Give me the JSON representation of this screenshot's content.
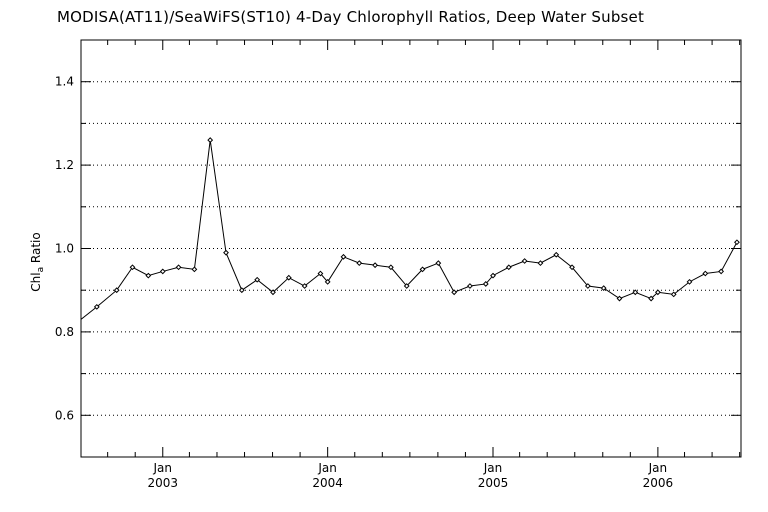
{
  "chart_data": {
    "type": "line",
    "title": "MODISA(AT11)/SeaWiFS(ST10) 4-Day Chlorophyll Ratios, Deep Water Subset",
    "xlabel": "",
    "ylabel_main": "Chl",
    "ylabel_sub": "a",
    "ylabel_rest": " Ratio",
    "ylim": [
      0.5,
      1.5
    ],
    "xlim": [
      "2002-07-04",
      "2006-07-04"
    ],
    "yticks": [
      "0.6",
      "0.8",
      "1.0",
      "1.2",
      "1.4"
    ],
    "ytick_values": [
      0.6,
      0.8,
      1.0,
      1.2,
      1.4
    ],
    "xticks": [
      {
        "date": "2003-01-01",
        "month": "Jan",
        "year": "2003"
      },
      {
        "date": "2004-01-01",
        "month": "Jan",
        "year": "2004"
      },
      {
        "date": "2005-01-01",
        "month": "Jan",
        "year": "2005"
      },
      {
        "date": "2006-01-01",
        "month": "Jan",
        "year": "2006"
      }
    ],
    "grid": true,
    "series": [
      {
        "x": [
          "2002-07-04",
          "2002-08-08",
          "2002-09-21",
          "2002-10-26",
          "2002-11-30",
          "2003-01-01",
          "2003-02-05",
          "2003-03-12",
          "2003-04-16",
          "2003-05-21",
          "2003-06-25",
          "2003-07-29",
          "2003-09-02",
          "2003-10-07",
          "2003-11-11",
          "2003-12-16",
          "2004-01-01",
          "2004-02-05",
          "2004-03-11",
          "2004-04-15",
          "2004-05-20",
          "2004-06-24",
          "2004-07-29",
          "2004-09-02",
          "2004-10-07",
          "2004-11-11",
          "2004-12-16",
          "2005-01-01",
          "2005-02-05",
          "2005-03-12",
          "2005-04-16",
          "2005-05-21",
          "2005-06-25",
          "2005-07-30",
          "2005-09-03",
          "2005-10-08",
          "2005-11-12",
          "2005-12-17",
          "2006-01-01",
          "2006-02-05",
          "2006-03-12",
          "2006-04-16",
          "2006-05-21",
          "2006-06-25"
        ],
        "y": [
          0.83,
          0.86,
          0.9,
          0.955,
          0.935,
          0.945,
          0.955,
          0.95,
          1.26,
          0.99,
          0.9,
          0.925,
          0.895,
          0.93,
          0.91,
          0.94,
          0.92,
          0.98,
          0.965,
          0.96,
          0.955,
          0.91,
          0.95,
          0.965,
          0.895,
          0.91,
          0.915,
          0.935,
          0.955,
          0.97,
          0.965,
          0.985,
          0.955,
          0.91,
          0.905,
          0.88,
          0.895,
          0.88,
          0.895,
          0.89,
          0.92,
          0.94,
          0.945,
          1.015
        ]
      }
    ]
  }
}
